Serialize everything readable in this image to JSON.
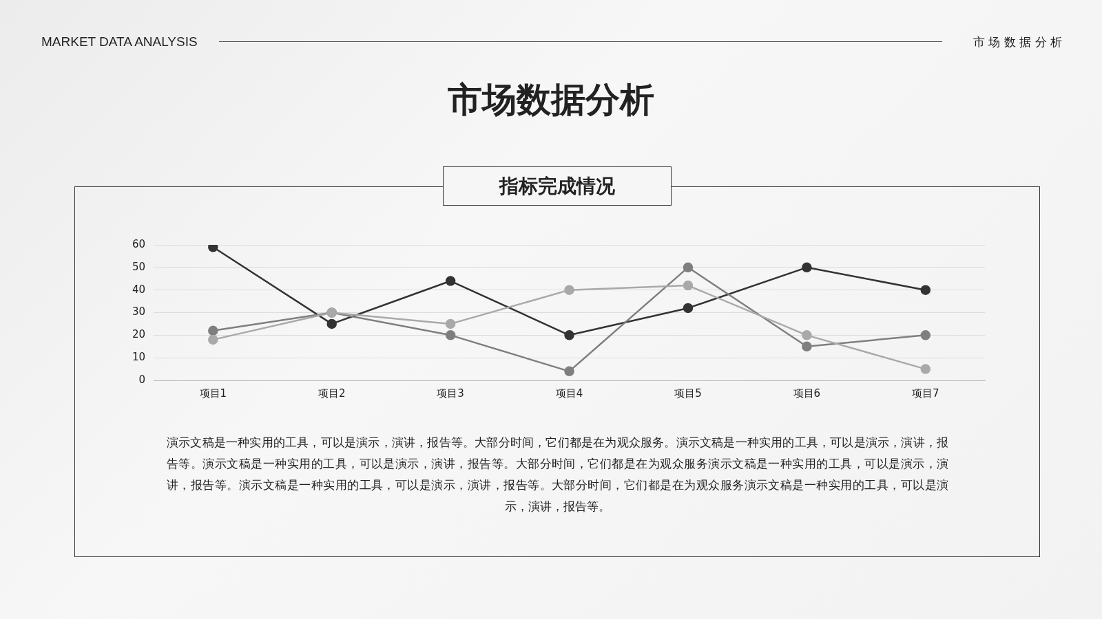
{
  "chart_data": {
    "type": "line",
    "title": "市场数据分析",
    "subtitle": "指标完成情况",
    "categories": [
      "项目1",
      "项目2",
      "项目3",
      "项目4",
      "项目5",
      "项目6",
      "项目7"
    ],
    "series": [
      {
        "color": "#333333",
        "values": [
          59,
          25,
          44,
          20,
          32,
          50,
          40
        ]
      },
      {
        "color": "#7f7f7f",
        "values": [
          22,
          30,
          20,
          4,
          50,
          15,
          20
        ]
      },
      {
        "color": "#a9a9a9",
        "values": [
          18,
          30,
          25,
          40,
          42,
          20,
          5
        ]
      }
    ],
    "ylim": [
      0,
      60
    ],
    "yticks": [
      0,
      10,
      20,
      30,
      40,
      50,
      60
    ],
    "grid": "y",
    "legend": false,
    "marker": "circle",
    "line_style": "solid",
    "annotations": [
      "MARKET DATA ANALYSIS",
      "市 场 数 据 分 析",
      "演示文稿是一种实用的工具，可以是演示，演讲，报告等。大部分时间，它们都是在为观众服务。演示文稿是一种实用的工具，可以是演示，演讲，报告等。演示文稿是一种实用的工具，可以是演示，演讲，报告等。大部分时间，它们都是在为观众服务演示文稿是一种实用的工具，可以是演示，演讲，报告等。演示文稿是一种实用的工具，可以是演示，演讲，报告等。大部分时间，它们都是在为观众服务演示文稿是一种实用的工具，可以是演示，演讲，报告等。"
    ]
  }
}
